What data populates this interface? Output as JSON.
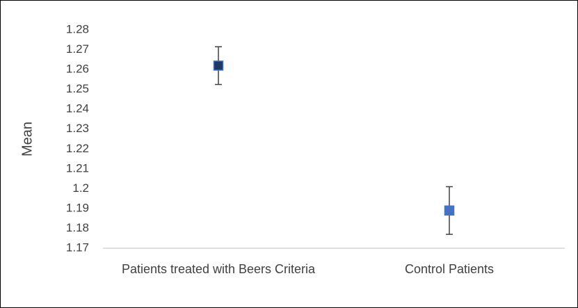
{
  "chart_data": {
    "type": "scatter",
    "y_label": "Mean",
    "categories": [
      "Patients treated with Beers Criteria",
      "Control Patients"
    ],
    "values": [
      1.262,
      1.189
    ],
    "errors": [
      0.0095,
      0.012
    ],
    "colors": [
      "#1f3864",
      "#4472c4"
    ],
    "ylim": [
      1.17,
      1.28
    ],
    "yticks": [
      1.17,
      1.18,
      1.19,
      1.2,
      1.21,
      1.22,
      1.23,
      1.24,
      1.25,
      1.26,
      1.27,
      1.28
    ],
    "grid": false
  }
}
